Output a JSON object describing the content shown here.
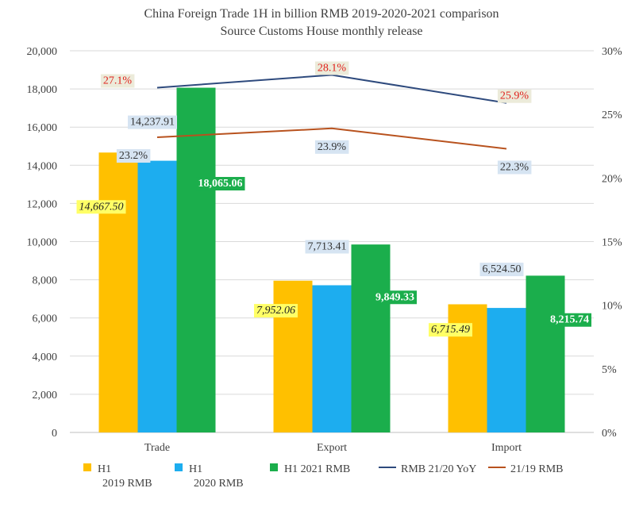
{
  "chart_data": {
    "type": "bar",
    "title": "China Foreign Trade 1H in billion RMB 2019-2020-2021 comparison",
    "subtitle": "Source Customs House monthly release",
    "categories": [
      "Trade",
      "Export",
      "Import"
    ],
    "ylim": [
      0,
      20000
    ],
    "y_ticks": [
      "0",
      "2,000",
      "4,000",
      "6,000",
      "8,000",
      "10,000",
      "12,000",
      "14,000",
      "16,000",
      "18,000",
      "20,000"
    ],
    "y2lim": [
      0,
      30
    ],
    "y2_ticks": [
      "0%",
      "5%",
      "10%",
      "15%",
      "20%",
      "25%",
      "30%"
    ],
    "grid": true,
    "legend_position": "bottom",
    "series": [
      {
        "name": "H1 2019 RMB",
        "legend_lines": [
          "H1",
          "2019 RMB"
        ],
        "kind": "bar",
        "axis": "left",
        "color": "#FFC000",
        "values": [
          14667.5,
          7952.06,
          6715.49
        ],
        "labels": [
          "14,667.50",
          "7,952.06",
          "6,715.49"
        ],
        "label_style": {
          "bg": "#FFFF66",
          "fg": "#222222",
          "italic": true
        }
      },
      {
        "name": "H1 2020 RMB",
        "legend_lines": [
          "H1",
          "2020 RMB"
        ],
        "kind": "bar",
        "axis": "left",
        "color": "#1DADEF",
        "values": [
          14237.91,
          7713.41,
          6524.5
        ],
        "labels": [
          "14,237.91",
          "7,713.41",
          "6,524.50"
        ],
        "label_style": {
          "bg": "#D6E4F2",
          "fg": "#333333",
          "italic": false
        }
      },
      {
        "name": "H1 2021 RMB",
        "legend_lines": [
          "H1 2021 RMB"
        ],
        "kind": "bar",
        "axis": "left",
        "color": "#1BAE4C",
        "values": [
          18065.06,
          9849.33,
          8215.74
        ],
        "labels": [
          "18,065.06",
          "9,849.33",
          "8,215.74"
        ],
        "label_style": {
          "bg": "#1BAE4C",
          "fg": "#ffffff",
          "italic": false,
          "bold": true
        }
      },
      {
        "name": "RMB 21/20 YoY",
        "legend_lines": [
          "RMB 21/20 YoY"
        ],
        "kind": "line",
        "axis": "right",
        "color": "#2E4A7D",
        "values": [
          27.1,
          28.1,
          25.9
        ],
        "labels": [
          "27.1%",
          "28.1%",
          "25.9%"
        ],
        "label_style": {
          "bg": "#ECEBDA",
          "fg": "#E0201B",
          "italic": false
        }
      },
      {
        "name": "21/19 RMB",
        "legend_lines": [
          "21/19 RMB"
        ],
        "kind": "line",
        "axis": "right",
        "color": "#B8521E",
        "values": [
          23.2,
          23.9,
          22.3
        ],
        "labels": [
          "23.2%",
          "23.9%",
          "22.3%"
        ],
        "label_style": {
          "bg": "#D6E4F2",
          "fg": "#333333",
          "italic": false
        }
      }
    ]
  }
}
